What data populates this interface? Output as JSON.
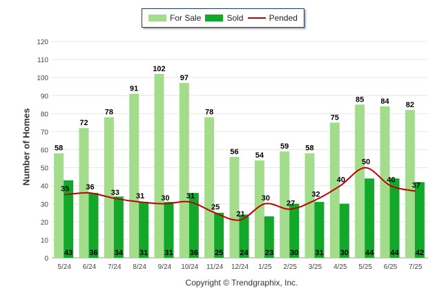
{
  "legend": {
    "for_sale": "For Sale",
    "sold": "Sold",
    "pended": "Pended"
  },
  "copyright": "Copyright © Trendgraphix, Inc.",
  "colors": {
    "for_sale": "#a3dd8c",
    "sold": "#12a82a",
    "pended": "#c00000",
    "grid": "#e6e6e6"
  },
  "chart_data": {
    "type": "bar",
    "ylabel": "Number of Homes",
    "xlabel": "",
    "ylim": [
      0,
      120
    ],
    "yticks": [
      0,
      10,
      20,
      30,
      40,
      50,
      60,
      70,
      80,
      90,
      100,
      110,
      120
    ],
    "grid": true,
    "legend_position": "top-center",
    "categories": [
      "5/24",
      "6/24",
      "7/24",
      "8/24",
      "9/24",
      "10/24",
      "11/24",
      "12/24",
      "1/25",
      "2/25",
      "3/25",
      "4/25",
      "5/25",
      "6/25",
      "7/25"
    ],
    "series": [
      {
        "name": "For Sale",
        "kind": "bar",
        "values": [
          58,
          72,
          78,
          91,
          102,
          97,
          78,
          56,
          54,
          59,
          58,
          75,
          85,
          84,
          82
        ]
      },
      {
        "name": "Sold",
        "kind": "bar",
        "values": [
          43,
          36,
          34,
          31,
          31,
          36,
          25,
          24,
          23,
          30,
          31,
          30,
          44,
          44,
          42
        ]
      },
      {
        "name": "Pended",
        "kind": "line",
        "values": [
          35,
          36,
          33,
          31,
          30,
          31,
          25,
          21,
          30,
          27,
          32,
          40,
          50,
          40,
          37
        ]
      }
    ]
  }
}
